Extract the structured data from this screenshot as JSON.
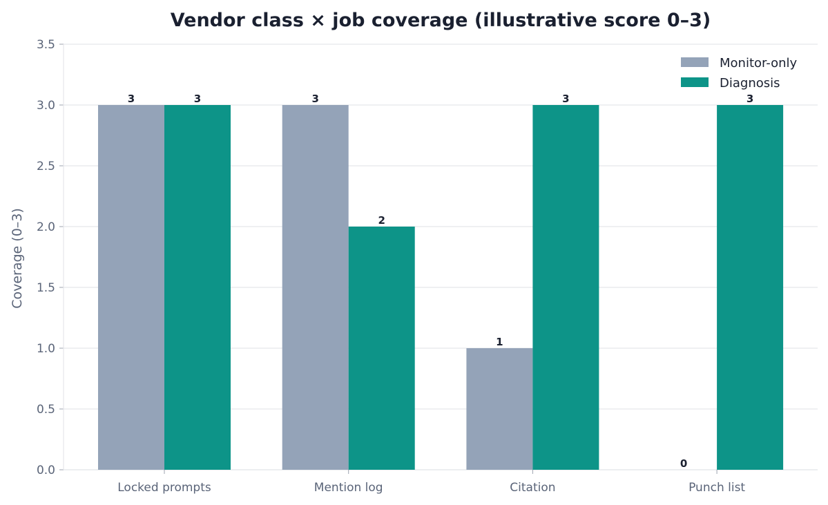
{
  "chart_data": {
    "type": "bar",
    "title": "Vendor class × job coverage (illustrative score 0–3)",
    "xlabel": "",
    "ylabel": "Coverage (0–3)",
    "categories": [
      "Locked prompts",
      "Mention log",
      "Citation",
      "Punch list"
    ],
    "series": [
      {
        "name": "Monitor-only",
        "values": [
          3,
          3,
          1,
          0
        ],
        "color": "#94a3b8"
      },
      {
        "name": "Diagnosis",
        "values": [
          3,
          2,
          3,
          3
        ],
        "color": "#0d9488"
      }
    ],
    "ylim": [
      0,
      3.5
    ],
    "yticks": [
      "0.0",
      "0.5",
      "1.0",
      "1.5",
      "2.0",
      "2.5",
      "3.0",
      "3.5"
    ],
    "grid": true,
    "legend": "top-right",
    "data_labels": true
  }
}
